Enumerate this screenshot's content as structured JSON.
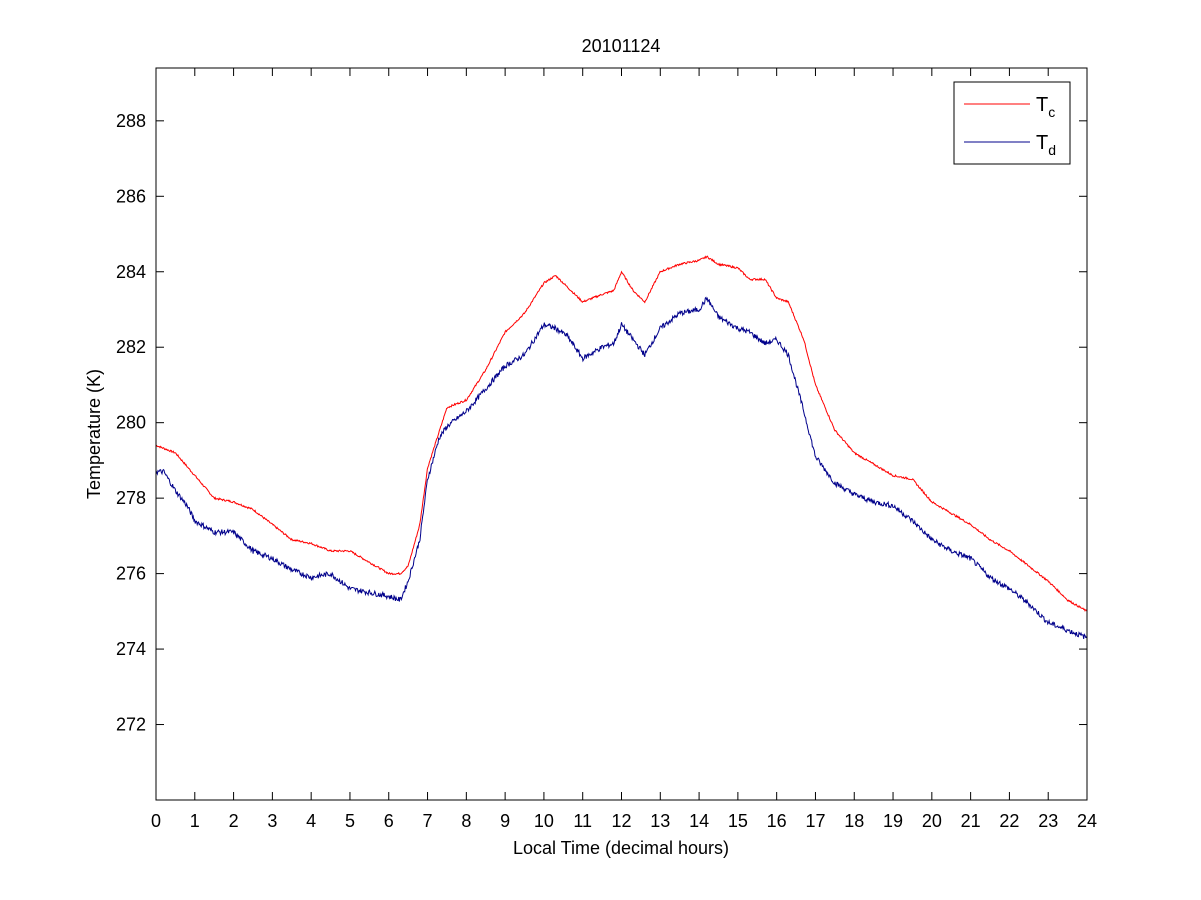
{
  "chart_data": {
    "type": "line",
    "title": "20101124",
    "xlabel": "Local Time (decimal hours)",
    "ylabel": "Temperature (K)",
    "xlim": [
      0,
      24
    ],
    "ylim": [
      270,
      289.4
    ],
    "xticks": [
      "0",
      "1",
      "2",
      "3",
      "4",
      "5",
      "6",
      "7",
      "8",
      "9",
      "10",
      "11",
      "12",
      "13",
      "14",
      "15",
      "16",
      "17",
      "18",
      "19",
      "20",
      "21",
      "22",
      "23",
      "24"
    ],
    "yticks": [
      "272",
      "274",
      "276",
      "278",
      "280",
      "282",
      "284",
      "286",
      "288"
    ],
    "grid": false,
    "legend_position": "top-right",
    "series": [
      {
        "name": "T",
        "subscript": "c",
        "color": "#ff0000",
        "x": [
          0,
          0.5,
          1,
          1.5,
          2,
          2.5,
          3,
          3.5,
          4,
          4.5,
          5,
          5.5,
          6,
          6.3,
          6.5,
          6.8,
          7,
          7.5,
          8,
          8.5,
          9,
          9.5,
          10,
          10.3,
          10.6,
          11,
          11.5,
          11.8,
          12,
          12.3,
          12.6,
          13,
          13.5,
          14,
          14.2,
          14.5,
          15,
          15.3,
          15.7,
          16,
          16.3,
          16.7,
          17,
          17.5,
          18,
          18.5,
          19,
          19.5,
          20,
          20.5,
          21,
          21.5,
          22,
          22.5,
          23,
          23.5,
          24
        ],
        "y": [
          279.4,
          279.2,
          278.6,
          278.0,
          277.9,
          277.7,
          277.3,
          276.9,
          276.8,
          276.6,
          276.6,
          276.3,
          276.0,
          276.0,
          276.2,
          277.3,
          278.8,
          280.4,
          280.6,
          281.4,
          282.4,
          282.9,
          283.7,
          283.9,
          283.6,
          283.2,
          283.4,
          283.5,
          284.0,
          283.5,
          283.2,
          284.0,
          284.2,
          284.3,
          284.4,
          284.2,
          284.1,
          283.8,
          283.8,
          283.3,
          283.2,
          282.2,
          281.0,
          279.8,
          279.2,
          278.9,
          278.6,
          278.5,
          277.9,
          277.6,
          277.3,
          276.9,
          276.6,
          276.2,
          275.8,
          275.3,
          275.0
        ]
      },
      {
        "name": "T",
        "subscript": "d",
        "color": "#00008b",
        "x": [
          0,
          0.2,
          0.5,
          0.8,
          1,
          1.5,
          2,
          2.5,
          3,
          3.5,
          4,
          4.5,
          5,
          5.5,
          6,
          6.3,
          6.5,
          6.8,
          7,
          7.3,
          7.5,
          8,
          8.5,
          9,
          9.5,
          10,
          10.3,
          10.6,
          11,
          11.5,
          11.8,
          12,
          12.3,
          12.6,
          13,
          13.5,
          14,
          14.2,
          14.5,
          15,
          15.3,
          15.7,
          16,
          16.3,
          16.7,
          17,
          17.5,
          18,
          18.5,
          19,
          19.5,
          20,
          20.5,
          21,
          21.5,
          22,
          22.5,
          23,
          23.5,
          24
        ],
        "y": [
          278.7,
          278.7,
          278.2,
          277.8,
          277.4,
          277.1,
          277.1,
          276.6,
          276.4,
          276.1,
          275.9,
          276.0,
          275.6,
          275.5,
          275.4,
          275.3,
          275.8,
          276.9,
          278.5,
          279.6,
          279.9,
          280.3,
          280.9,
          281.5,
          281.8,
          282.6,
          282.5,
          282.3,
          281.7,
          282.0,
          282.1,
          282.6,
          282.2,
          281.8,
          282.5,
          282.9,
          283.0,
          283.3,
          282.8,
          282.5,
          282.4,
          282.1,
          282.2,
          281.8,
          280.3,
          279.1,
          278.4,
          278.1,
          277.9,
          277.8,
          277.4,
          276.9,
          276.6,
          276.4,
          275.9,
          275.6,
          275.2,
          274.7,
          274.5,
          274.3
        ]
      }
    ]
  }
}
